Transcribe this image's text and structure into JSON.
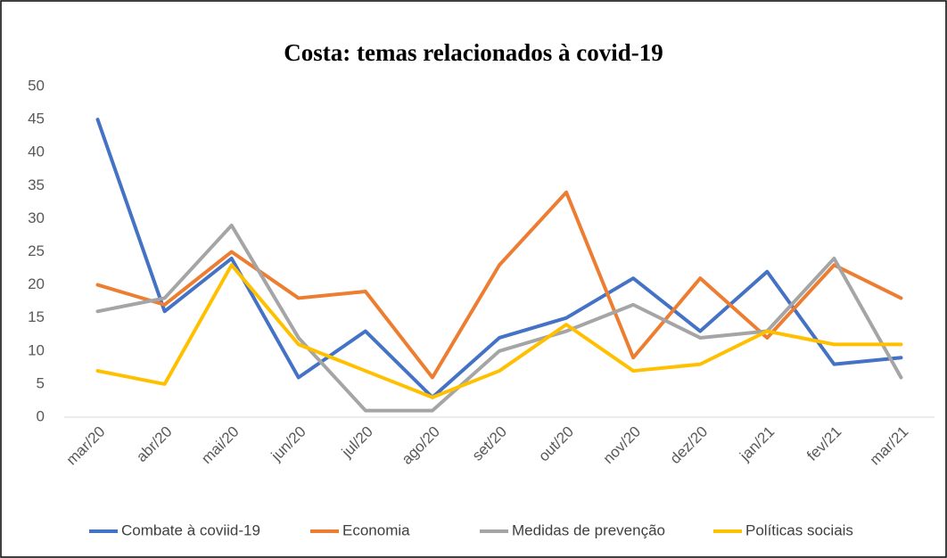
{
  "chart_data": {
    "type": "line",
    "title": "Costa: temas relacionados à covid-19",
    "categories": [
      "mar/20",
      "abr/20",
      "mai/20",
      "jun/20",
      "jul/20",
      "ago/20",
      "set/20",
      "out/20",
      "nov/20",
      "dez/20",
      "jan/21",
      "fev/21",
      "mar/21"
    ],
    "series": [
      {
        "name": "Combate à coviid-19",
        "color": "#4472c4",
        "values": [
          45,
          16,
          24,
          6,
          13,
          3,
          12,
          15,
          21,
          13,
          22,
          8,
          9
        ]
      },
      {
        "name": "Economia",
        "color": "#ed7d31",
        "values": [
          20,
          17,
          25,
          18,
          19,
          6,
          23,
          34,
          9,
          21,
          12,
          23,
          18
        ]
      },
      {
        "name": "Medidas de prevenção",
        "color": "#a5a5a5",
        "values": [
          16,
          18,
          29,
          12,
          1,
          1,
          10,
          13,
          17,
          12,
          13,
          24,
          6
        ]
      },
      {
        "name": "Políticas sociais",
        "color": "#ffc000",
        "values": [
          7,
          5,
          23,
          11,
          7,
          3,
          7,
          14,
          7,
          8,
          13,
          11,
          11
        ]
      }
    ],
    "ylim": [
      0,
      50
    ],
    "yticks": [
      0,
      5,
      10,
      15,
      20,
      25,
      30,
      35,
      40,
      45,
      50
    ],
    "grid": false,
    "legend": "bottom"
  }
}
